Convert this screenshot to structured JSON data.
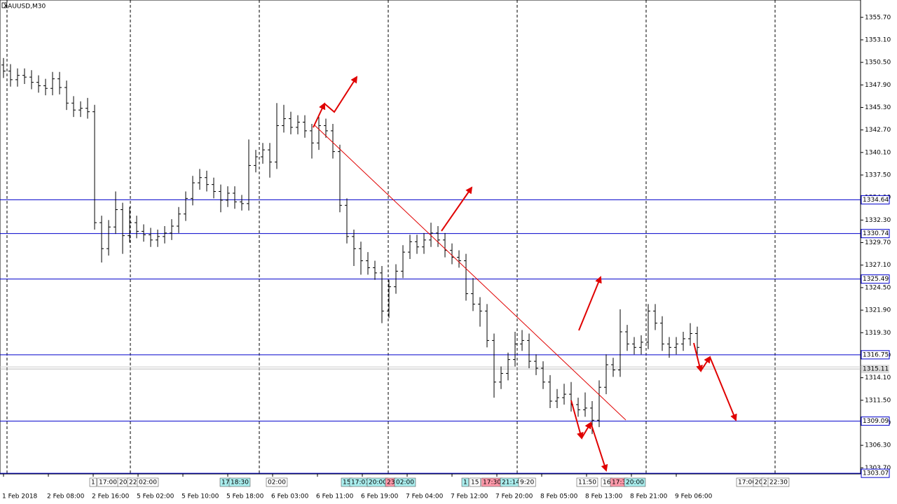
{
  "chart_data": {
    "type": "ohlc",
    "title": "XAUUSD,M30",
    "color": "#000000",
    "xlim": [
      -0.5,
      122.3
    ],
    "xticks": [
      {
        "value": 0,
        "label": "1 Feb 2018"
      },
      {
        "value": 6.4,
        "label": "2 Feb 08:00"
      },
      {
        "value": 12.8,
        "label": "2 Feb 16:00"
      },
      {
        "value": 19.2,
        "label": "5 Feb 02:00"
      },
      {
        "value": 25.6,
        "label": "5 Feb 10:00"
      },
      {
        "value": 32,
        "label": "5 Feb 18:00"
      },
      {
        "value": 38.4,
        "label": "6 Feb 03:00"
      },
      {
        "value": 44.8,
        "label": "6 Feb 11:00"
      },
      {
        "value": 51.2,
        "label": "6 Feb 19:00"
      },
      {
        "value": 57.6,
        "label": "7 Feb 04:00"
      },
      {
        "value": 64,
        "label": "7 Feb 12:00"
      },
      {
        "value": 70.4,
        "label": "7 Feb 20:00"
      },
      {
        "value": 76.8,
        "label": "8 Feb 05:00"
      },
      {
        "value": 83.2,
        "label": "8 Feb 13:00"
      },
      {
        "value": 89.6,
        "label": "8 Feb 21:00"
      },
      {
        "value": 96,
        "label": "9 Feb 06:00"
      }
    ],
    "ylim": [
      1303.0,
      1357.7
    ],
    "yticks": [
      {
        "value": 1355.7,
        "label": "1355.70"
      },
      {
        "value": 1353.1,
        "label": "1353.10"
      },
      {
        "value": 1350.5,
        "label": "1350.50"
      },
      {
        "value": 1347.9,
        "label": "1347.90"
      },
      {
        "value": 1345.3,
        "label": "1345.30"
      },
      {
        "value": 1342.7,
        "label": "1342.70"
      },
      {
        "value": 1340.1,
        "label": "1340.10"
      },
      {
        "value": 1337.5,
        "label": "1337.50"
      },
      {
        "value": 1334.9,
        "label": "1334.90"
      },
      {
        "value": 1332.3,
        "label": "1332.30"
      },
      {
        "value": 1329.7,
        "label": "1329.70"
      },
      {
        "value": 1327.1,
        "label": "1327.10"
      },
      {
        "value": 1324.5,
        "label": "1324.50"
      },
      {
        "value": 1321.9,
        "label": "1321.90"
      },
      {
        "value": 1319.3,
        "label": "1319.30"
      },
      {
        "value": 1316.7,
        "label": "1316.70"
      },
      {
        "value": 1314.1,
        "label": "1314.10"
      },
      {
        "value": 1311.5,
        "label": "1311.50"
      },
      {
        "value": 1308.9,
        "label": "1308.90"
      },
      {
        "value": 1306.3,
        "label": "1306.30"
      },
      {
        "value": 1303.7,
        "label": "1303.70"
      }
    ],
    "levels": [
      1334.64,
      1330.74,
      1325.49,
      1316.75,
      1309.09,
      1303.07
    ],
    "level_color": "#0000cc",
    "current_price": 1315.11,
    "time_markers": [
      "1",
      "17:00",
      "20:",
      "22",
      "02:00",
      "17",
      "18:30",
      "02:00",
      "15",
      "17:01",
      "20:00",
      "23",
      "02:00",
      "1",
      "15",
      "17:30",
      "21:14",
      "9:20",
      "11:50",
      "16",
      "17:3",
      "20:00",
      "17:00",
      "20",
      "2",
      "22:30"
    ],
    "open": [
      1350.2,
      1349.5,
      1348.5,
      1349.0,
      1348.8,
      1348.2,
      1347.8,
      1347.5,
      1348.6,
      1347.6,
      1345.8,
      1345.0,
      1345.2,
      1344.8,
      1332.0,
      1329.0,
      1331.5,
      1333.5,
      1330.5,
      1332.0,
      1331.0,
      1330.6,
      1330.0,
      1330.4,
      1330.8,
      1331.6,
      1333.0,
      1334.8,
      1336.6,
      1337.2,
      1336.4,
      1335.6,
      1334.6,
      1335.4,
      1334.4,
      1334.2,
      1338.6,
      1339.6,
      1340.4,
      1339.0,
      1343.2,
      1344.0,
      1343.0,
      1343.6,
      1342.6,
      1341.2,
      1343.2,
      1342.6,
      1340.2,
      1334.0,
      1330.4,
      1329.0,
      1327.6,
      1326.8,
      1326.2,
      1321.8,
      1324.6,
      1326.4,
      1328.6,
      1329.8,
      1329.2,
      1330.0,
      1330.8,
      1330.0,
      1328.8,
      1328.0,
      1327.6,
      1323.8,
      1322.6,
      1321.8,
      1318.4,
      1313.6,
      1314.6,
      1316.2,
      1318.0,
      1318.4,
      1316.0,
      1315.2,
      1313.6,
      1311.4,
      1311.8,
      1312.2,
      1311.0,
      1310.4,
      1310.6,
      1309.2,
      1313.0,
      1315.6,
      1315.0,
      1319.4,
      1318.0,
      1317.6,
      1318.2,
      1321.8,
      1320.4,
      1318.0,
      1317.6,
      1318.0,
      1318.6,
      1319.2
    ],
    "high": [
      1351.0,
      1350.3,
      1349.8,
      1349.8,
      1349.6,
      1349.0,
      1348.6,
      1349.4,
      1349.4,
      1348.4,
      1346.6,
      1346.0,
      1346.4,
      1345.6,
      1332.8,
      1332.3,
      1335.6,
      1334.3,
      1333.8,
      1332.8,
      1331.8,
      1331.4,
      1331.2,
      1331.6,
      1332.4,
      1333.8,
      1335.6,
      1337.4,
      1338.2,
      1338.0,
      1337.2,
      1336.4,
      1336.2,
      1336.2,
      1335.2,
      1341.6,
      1340.4,
      1341.2,
      1341.2,
      1345.8,
      1345.6,
      1344.8,
      1344.4,
      1344.4,
      1343.4,
      1344.2,
      1344.0,
      1343.4,
      1341.0,
      1334.8,
      1331.2,
      1329.8,
      1328.6,
      1327.6,
      1327.0,
      1325.4,
      1327.2,
      1329.4,
      1330.6,
      1330.6,
      1330.8,
      1332.0,
      1331.6,
      1330.8,
      1329.6,
      1328.8,
      1328.4,
      1325.6,
      1323.4,
      1322.6,
      1319.2,
      1315.4,
      1317.0,
      1319.4,
      1319.6,
      1319.2,
      1316.8,
      1316.0,
      1314.4,
      1312.8,
      1313.4,
      1313.6,
      1311.8,
      1312.4,
      1311.4,
      1313.8,
      1316.8,
      1316.4,
      1322.0,
      1320.2,
      1318.8,
      1319.0,
      1322.6,
      1322.6,
      1321.2,
      1318.8,
      1318.8,
      1319.4,
      1320.4,
      1320.0
    ],
    "low": [
      1348.7,
      1347.7,
      1347.7,
      1348.0,
      1347.4,
      1347.0,
      1346.7,
      1346.7,
      1346.8,
      1345.0,
      1344.2,
      1344.2,
      1344.0,
      1331.2,
      1327.4,
      1328.2,
      1330.7,
      1328.4,
      1329.7,
      1330.2,
      1329.8,
      1329.2,
      1329.2,
      1329.6,
      1330.0,
      1330.8,
      1332.2,
      1334.0,
      1335.8,
      1335.6,
      1334.8,
      1333.2,
      1333.8,
      1333.6,
      1333.4,
      1333.4,
      1337.8,
      1338.8,
      1337.2,
      1338.2,
      1342.4,
      1342.2,
      1342.2,
      1341.8,
      1339.4,
      1340.4,
      1341.8,
      1339.4,
      1333.2,
      1329.6,
      1327.0,
      1326.0,
      1326.0,
      1325.4,
      1320.4,
      1321.0,
      1323.8,
      1325.6,
      1327.8,
      1328.4,
      1328.4,
      1329.2,
      1329.2,
      1328.0,
      1327.2,
      1326.8,
      1323.0,
      1321.8,
      1320.0,
      1317.6,
      1311.8,
      1312.8,
      1313.8,
      1315.4,
      1317.2,
      1315.2,
      1314.4,
      1312.8,
      1310.6,
      1310.6,
      1311.0,
      1310.2,
      1309.6,
      1309.6,
      1307.6,
      1308.4,
      1312.2,
      1314.2,
      1314.2,
      1317.2,
      1316.8,
      1316.8,
      1317.4,
      1319.6,
      1317.2,
      1316.4,
      1316.8,
      1317.2,
      1317.8,
      1316.8
    ],
    "close": [
      1349.5,
      1348.5,
      1349.0,
      1348.8,
      1348.2,
      1347.8,
      1347.5,
      1348.6,
      1347.6,
      1345.8,
      1345.0,
      1345.2,
      1344.8,
      1332.0,
      1329.0,
      1331.5,
      1333.5,
      1330.5,
      1332.0,
      1331.0,
      1330.6,
      1330.0,
      1330.4,
      1330.8,
      1331.6,
      1333.0,
      1334.8,
      1336.6,
      1337.2,
      1336.4,
      1335.6,
      1334.6,
      1335.4,
      1334.4,
      1334.2,
      1338.6,
      1339.6,
      1340.4,
      1339.0,
      1343.2,
      1344.0,
      1343.0,
      1343.6,
      1342.6,
      1341.2,
      1343.2,
      1342.6,
      1340.2,
      1334.0,
      1330.4,
      1329.0,
      1327.6,
      1326.8,
      1326.2,
      1321.8,
      1324.6,
      1326.4,
      1328.6,
      1329.8,
      1329.2,
      1330.0,
      1330.8,
      1330.0,
      1328.8,
      1328.0,
      1327.6,
      1323.8,
      1322.6,
      1321.8,
      1318.4,
      1313.6,
      1314.6,
      1316.2,
      1318.0,
      1318.4,
      1316.0,
      1315.2,
      1313.6,
      1311.4,
      1311.8,
      1312.2,
      1311.0,
      1310.4,
      1310.6,
      1309.2,
      1313.0,
      1315.6,
      1315.0,
      1319.4,
      1318.0,
      1317.6,
      1318.2,
      1321.8,
      1320.4,
      1318.0,
      1317.6,
      1318.0,
      1318.6,
      1319.2,
      1317.6
    ]
  }
}
